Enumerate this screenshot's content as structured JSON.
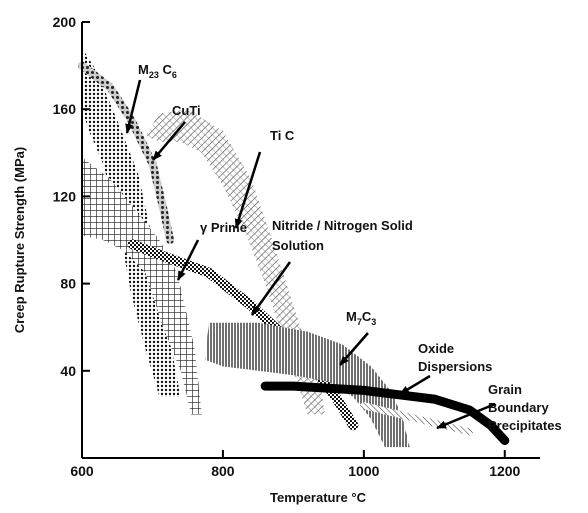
{
  "chart_data": {
    "type": "area",
    "xlabel": "Temperature °C",
    "ylabel": "Creep Rupture Strength (MPa)",
    "xlim": [
      600,
      1250
    ],
    "ylim": [
      0,
      200
    ],
    "x_ticks": [
      "600",
      "800",
      "1000",
      "1200"
    ],
    "y_ticks": [
      "200",
      "160",
      "120",
      "80",
      "40"
    ],
    "grid": false,
    "series": [
      {
        "label": "M23C6",
        "label_text": {
          "main": "M",
          "sub1": "23",
          "mid": " C",
          "sub2": "6"
        },
        "pattern": "dots-dense",
        "color": "#222222",
        "points": [
          [
            600,
            188
          ],
          [
            620,
            178
          ],
          [
            650,
            155
          ],
          [
            680,
            130
          ],
          [
            700,
            100
          ],
          [
            720,
            65
          ],
          [
            730,
            45
          ],
          [
            740,
            28
          ],
          [
            710,
            28
          ],
          [
            690,
            50
          ],
          [
            670,
            75
          ],
          [
            650,
            110
          ],
          [
            630,
            135
          ],
          [
            610,
            150
          ],
          [
            600,
            160
          ]
        ]
      },
      {
        "label": "CuTi",
        "label_text": {
          "main": "CuTi"
        },
        "pattern": "beads",
        "color": "#333333",
        "points": [
          [
            600,
            180
          ],
          [
            640,
            170
          ],
          [
            670,
            155
          ],
          [
            700,
            135
          ],
          [
            715,
            115
          ],
          [
            725,
            100
          ]
        ]
      },
      {
        "label": "Ti C",
        "label_text": {
          "main": "Ti C"
        },
        "pattern": "crosshatch-fine",
        "color": "#555555",
        "points": [
          [
            690,
            148
          ],
          [
            710,
            158
          ],
          [
            750,
            160
          ],
          [
            800,
            150
          ],
          [
            840,
            128
          ],
          [
            870,
            100
          ],
          [
            895,
            75
          ],
          [
            910,
            60
          ],
          [
            935,
            40
          ],
          [
            945,
            20
          ],
          [
            920,
            20
          ],
          [
            900,
            40
          ],
          [
            880,
            60
          ],
          [
            860,
            80
          ],
          [
            830,
            105
          ],
          [
            800,
            125
          ],
          [
            770,
            140
          ],
          [
            740,
            145
          ],
          [
            710,
            145
          ]
        ]
      },
      {
        "label": "γ Prime",
        "label_text": {
          "main": "γ Prime"
        },
        "pattern": "grid",
        "color": "#333333",
        "points": [
          [
            600,
            138
          ],
          [
            640,
            128
          ],
          [
            680,
            112
          ],
          [
            710,
            100
          ],
          [
            735,
            85
          ],
          [
            760,
            50
          ],
          [
            770,
            20
          ],
          [
            755,
            20
          ],
          [
            740,
            40
          ],
          [
            715,
            60
          ],
          [
            690,
            85
          ],
          [
            660,
            95
          ],
          [
            630,
            100
          ],
          [
            600,
            102
          ]
        ]
      },
      {
        "label": "Nitride / Nitrogen Solid Solution",
        "label_text": {
          "main": "Nitride / Nitrogen Solid",
          "line2": "Solution"
        },
        "pattern": "checker",
        "color": "#111111",
        "points": [
          [
            672,
            98
          ],
          [
            720,
            92
          ],
          [
            780,
            85
          ],
          [
            840,
            70
          ],
          [
            880,
            58
          ],
          [
            920,
            45
          ],
          [
            960,
            28
          ],
          [
            985,
            15
          ]
        ]
      },
      {
        "label": "M7C3",
        "label_text": {
          "main": "M",
          "sub1": "7",
          "mid": "C",
          "sub2": "3"
        },
        "pattern": "vlines",
        "color": "#222222",
        "points": [
          [
            780,
            62
          ],
          [
            850,
            62
          ],
          [
            920,
            58
          ],
          [
            970,
            52
          ],
          [
            1010,
            42
          ],
          [
            1040,
            30
          ],
          [
            1055,
            18
          ],
          [
            1065,
            5
          ],
          [
            1030,
            5
          ],
          [
            1010,
            18
          ],
          [
            985,
            28
          ],
          [
            950,
            35
          ],
          [
            900,
            38
          ],
          [
            850,
            40
          ],
          [
            800,
            42
          ],
          [
            775,
            45
          ]
        ]
      },
      {
        "label": "Oxide Dispersions",
        "label_text": {
          "main": "Oxide",
          "line2": "Dispersions"
        },
        "pattern": "solid",
        "color": "#000000",
        "points": [
          [
            860,
            33
          ],
          [
            900,
            33
          ],
          [
            950,
            32
          ],
          [
            1000,
            31
          ],
          [
            1050,
            29
          ],
          [
            1100,
            27
          ],
          [
            1150,
            22
          ],
          [
            1180,
            15
          ],
          [
            1200,
            8
          ]
        ]
      },
      {
        "label": "Grain Boundary Precipitates",
        "label_text": {
          "main": "Grain",
          "line2": "Boundary",
          "line3": "Precipitates"
        },
        "pattern": "hatch-light",
        "color": "#555555",
        "points": [
          [
            1000,
            24
          ],
          [
            1050,
            20
          ],
          [
            1100,
            16
          ],
          [
            1150,
            12
          ]
        ]
      }
    ]
  }
}
